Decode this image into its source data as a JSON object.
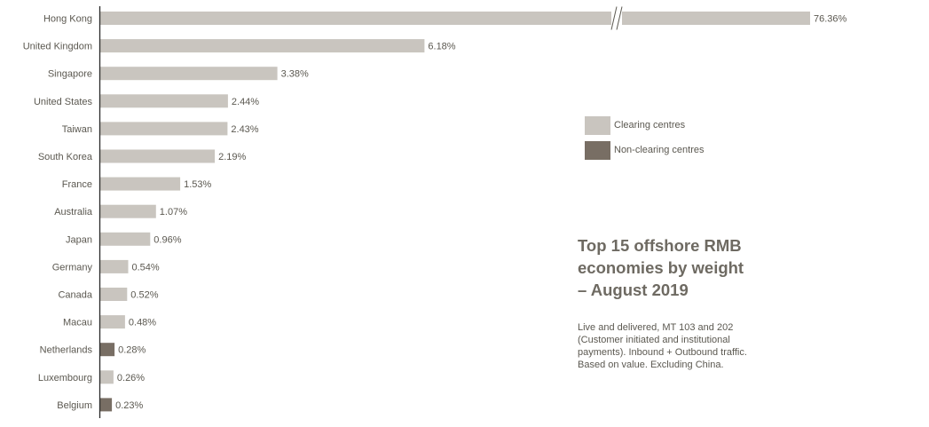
{
  "chart_data": {
    "type": "bar",
    "orientation": "horizontal",
    "title": "Top 15 offshore RMB economies by weight – August 2019",
    "subtitle": "Live and delivered, MT 103 and 202 (Customer initiated and institutional payments). Inbound + Outbound traffic. Based on value. Excluding China.",
    "categories": [
      "Hong Kong",
      "United Kingdom",
      "Singapore",
      "United States",
      "Taiwan",
      "South Korea",
      "France",
      "Australia",
      "Japan",
      "Germany",
      "Canada",
      "Macau",
      "Netherlands",
      "Luxembourg",
      "Belgium"
    ],
    "values": [
      76.36,
      6.18,
      3.38,
      2.44,
      2.43,
      2.19,
      1.53,
      1.07,
      0.96,
      0.54,
      0.52,
      0.48,
      0.28,
      0.26,
      0.23
    ],
    "value_labels": [
      "76.36%",
      "6.18%",
      "3.38%",
      "2.44%",
      "2.43%",
      "2.19%",
      "1.53%",
      "1.07%",
      "0.96%",
      "0.54%",
      "0.52%",
      "0.48%",
      "0.28%",
      "0.26%",
      "0.23%"
    ],
    "bar_group": [
      "clearing",
      "clearing",
      "clearing",
      "clearing",
      "clearing",
      "clearing",
      "clearing",
      "clearing",
      "clearing",
      "clearing",
      "clearing",
      "clearing",
      "non-clearing",
      "clearing",
      "non-clearing"
    ],
    "axis_break_on": "Hong Kong",
    "legend": [
      {
        "key": "clearing",
        "label": "Clearing centres",
        "color": "#c9c5bf"
      },
      {
        "key": "non-clearing",
        "label": "Non-clearing centres",
        "color": "#786e64"
      }
    ],
    "legend_position": "right",
    "grid": false
  },
  "text": {
    "title_lines": [
      "Top 15 offshore RMB",
      "economies by weight",
      "– August 2019"
    ],
    "subtitle_lines": [
      "Live and delivered, MT 103 and 202",
      "(Customer initiated and institutional",
      "payments). Inbound + Outbound traffic.",
      "Based on value. Excluding China."
    ]
  }
}
